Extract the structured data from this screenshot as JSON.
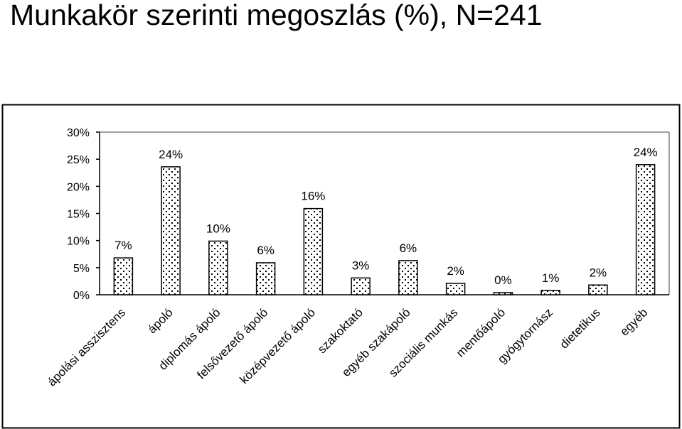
{
  "chart_data": {
    "type": "bar",
    "title": "Munkakör szerinti megoszlás (%), N=241",
    "categories": [
      "ápolási asszisztens",
      "ápoló",
      "diplomás ápoló",
      "felsővezető ápoló",
      "középvezető ápoló",
      "szakoktató",
      "egyéb szakápoló",
      "szociális munkás",
      "mentőápoló",
      "gyógytornász",
      "dietetikus",
      "egyéb"
    ],
    "values": [
      6.8,
      23.6,
      9.9,
      5.9,
      15.9,
      3.1,
      6.3,
      2.1,
      0.4,
      0.8,
      1.8,
      24.0
    ],
    "data_labels": [
      "7%",
      "24%",
      "10%",
      "6%",
      "16%",
      "3%",
      "6%",
      "2%",
      "0%",
      "1%",
      "2%",
      "24%"
    ],
    "y_ticks": [
      "0%",
      "5%",
      "10%",
      "15%",
      "20%",
      "25%",
      "30%"
    ],
    "y_tick_values": [
      0,
      5,
      10,
      15,
      20,
      25,
      30
    ],
    "ylim": [
      0,
      30
    ],
    "xlabel": "",
    "ylabel": "",
    "grid": false,
    "legend": "none",
    "bar_fill": "#ffffff",
    "bar_pattern": "dotted",
    "bar_stroke": "#000000"
  }
}
